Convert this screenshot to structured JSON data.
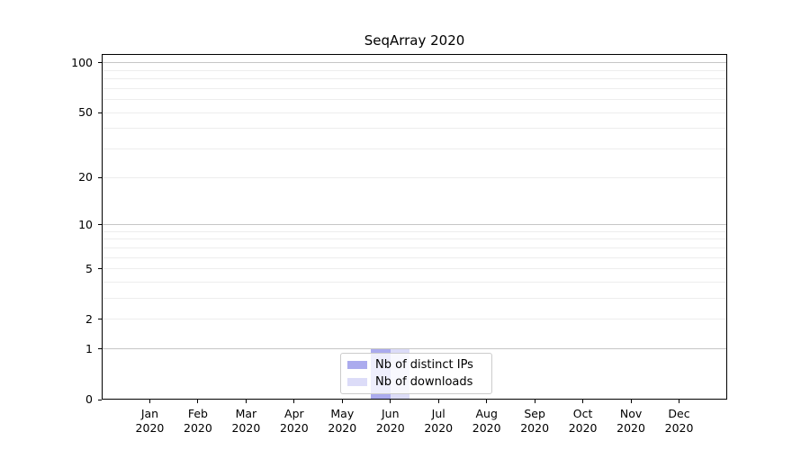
{
  "title": "SeqArray 2020",
  "legend": {
    "items": [
      {
        "label": "Nb of distinct IPs",
        "color": "#ababee"
      },
      {
        "label": "Nb of downloads",
        "color": "#dcdcf8"
      }
    ]
  },
  "chart_data": {
    "type": "bar",
    "title": "SeqArray 2020",
    "categories": [
      "Jan 2020",
      "Feb 2020",
      "Mar 2020",
      "Apr 2020",
      "May 2020",
      "Jun 2020",
      "Jul 2020",
      "Aug 2020",
      "Sep 2020",
      "Oct 2020",
      "Nov 2020",
      "Dec 2020"
    ],
    "series": [
      {
        "name": "Nb of distinct IPs",
        "color": "#ababee",
        "values": [
          0,
          0,
          0,
          0,
          0,
          1,
          0,
          0,
          0,
          0,
          0,
          0
        ]
      },
      {
        "name": "Nb of downloads",
        "color": "#dcdcf8",
        "values": [
          0,
          0,
          0,
          0,
          0,
          1,
          0,
          0,
          0,
          0,
          0,
          0
        ]
      }
    ],
    "xlabel": "",
    "ylabel": "",
    "y_scale": "log10(1+y)",
    "ylim": [
      0,
      113
    ],
    "y_tick_values": [
      0,
      1,
      2,
      5,
      10,
      20,
      50,
      100
    ],
    "y_major_grid": [
      1,
      10,
      100
    ],
    "y_minor_grid": [
      2,
      3,
      4,
      5,
      6,
      7,
      8,
      9,
      20,
      30,
      40,
      50,
      60,
      70,
      80,
      90
    ],
    "grid": true,
    "legend_position": "bottom-center",
    "colors": {
      "grid_major": "#c6c6c6",
      "grid_minor": "#ededed",
      "axis": "#000000",
      "background": "#ffffff"
    }
  }
}
